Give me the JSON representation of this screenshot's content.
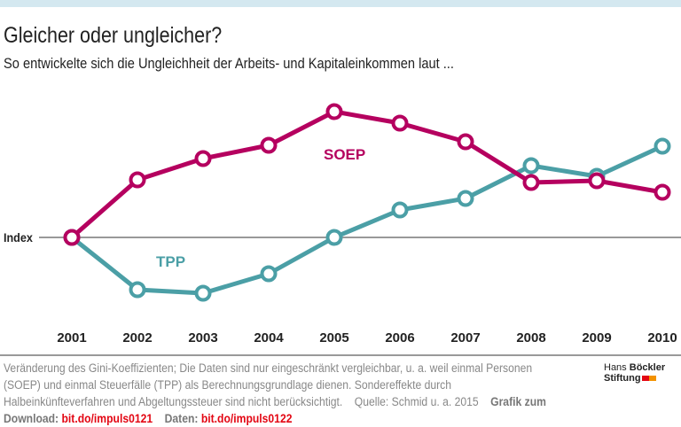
{
  "header": {
    "title": "Gleicher oder ungleicher?",
    "subtitle": "So entwickelte sich die Ungleichheit der Arbeits- und Kapitaleinkommen laut ..."
  },
  "chart_data": {
    "type": "line",
    "title": "Gleicher oder ungleicher?",
    "subtitle": "So entwickelte sich die Ungleichheit der Arbeits- und Kapitaleinkommen laut ...",
    "x": [
      "2001",
      "2002",
      "2003",
      "2004",
      "2005",
      "2006",
      "2007",
      "2008",
      "2009",
      "2010"
    ],
    "baseline_label": "Index",
    "y_units": "relative change vs. 2001 index (unscaled, estimated)",
    "series": [
      {
        "name": "SOEP",
        "color": "#b5005f",
        "values": [
          0,
          65,
          89,
          104,
          142,
          129,
          108,
          62,
          64,
          51
        ]
      },
      {
        "name": "TPP",
        "color": "#4b9fa6",
        "values": [
          0,
          -59,
          -63,
          -41,
          0,
          31,
          44,
          81,
          69,
          103
        ]
      }
    ],
    "ylim": [
      -80,
      150
    ],
    "grid": false,
    "legend": "inline labels"
  },
  "footer": {
    "note": "Veränderung des Gini-Koeffizienten; Die Daten sind nur eingeschränkt vergleichbar, u. a. weil einmal Personen (SOEP) und einmal Steuerfälle (TPP) als Berechnungsgrundlage dienen. Sondereffekte durch Halbeinkünfteverfahren und Abgeltungssteuer sind nicht berücksichtigt.",
    "source": "Quelle: Schmid u. a. 2015",
    "download_label": "Grafik zum Download:",
    "download_link": "bit.do/impuls0121",
    "data_label": "Daten:",
    "data_link": "bit.do/impuls0122"
  },
  "logo": {
    "line1a": "Hans",
    "line1b": "Böckler",
    "line2": "Stiftung",
    "colors": [
      "#e30613",
      "#f39200"
    ]
  }
}
